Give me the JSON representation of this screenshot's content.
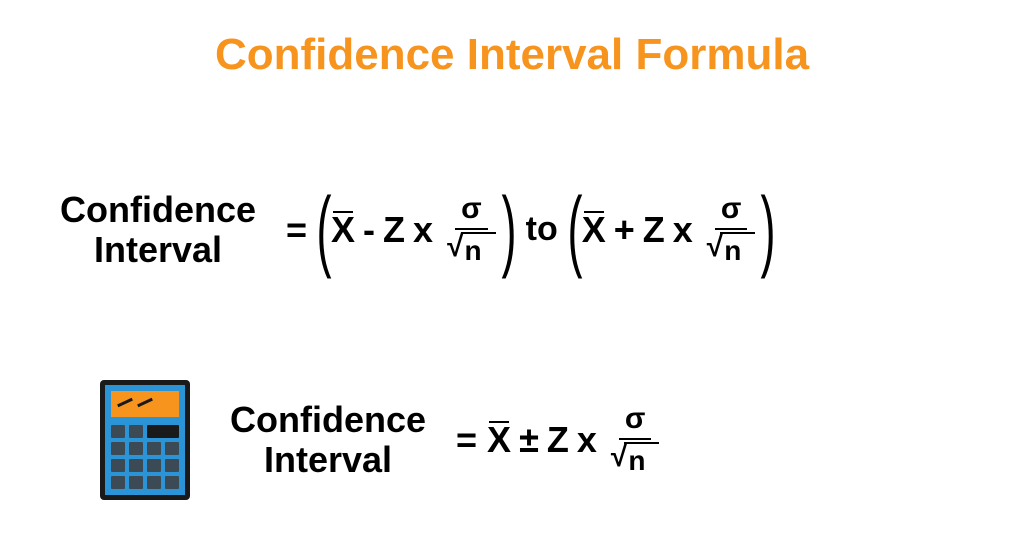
{
  "title": {
    "text": "Confidence Interval Formula",
    "color": "#f7941e"
  },
  "formula1": {
    "label_line1": "Confidence",
    "label_line2": "Interval",
    "equals": "=",
    "xbar": "X",
    "minus": "-",
    "plus": "+",
    "z": "Z",
    "times": "x",
    "sigma": "σ",
    "sqrt_n": "n",
    "to": "to"
  },
  "formula2": {
    "label_line1": "Confidence",
    "label_line2": "Interval",
    "equals": "=",
    "xbar": "X",
    "pm": "±",
    "z": "Z",
    "times": "x",
    "sigma": "σ",
    "sqrt_n": "n"
  },
  "calculator": {
    "body_color": "#2a94d6",
    "border_color": "#1a1a1a",
    "screen_color": "#f7941e",
    "button_color": "#3c4a55"
  }
}
